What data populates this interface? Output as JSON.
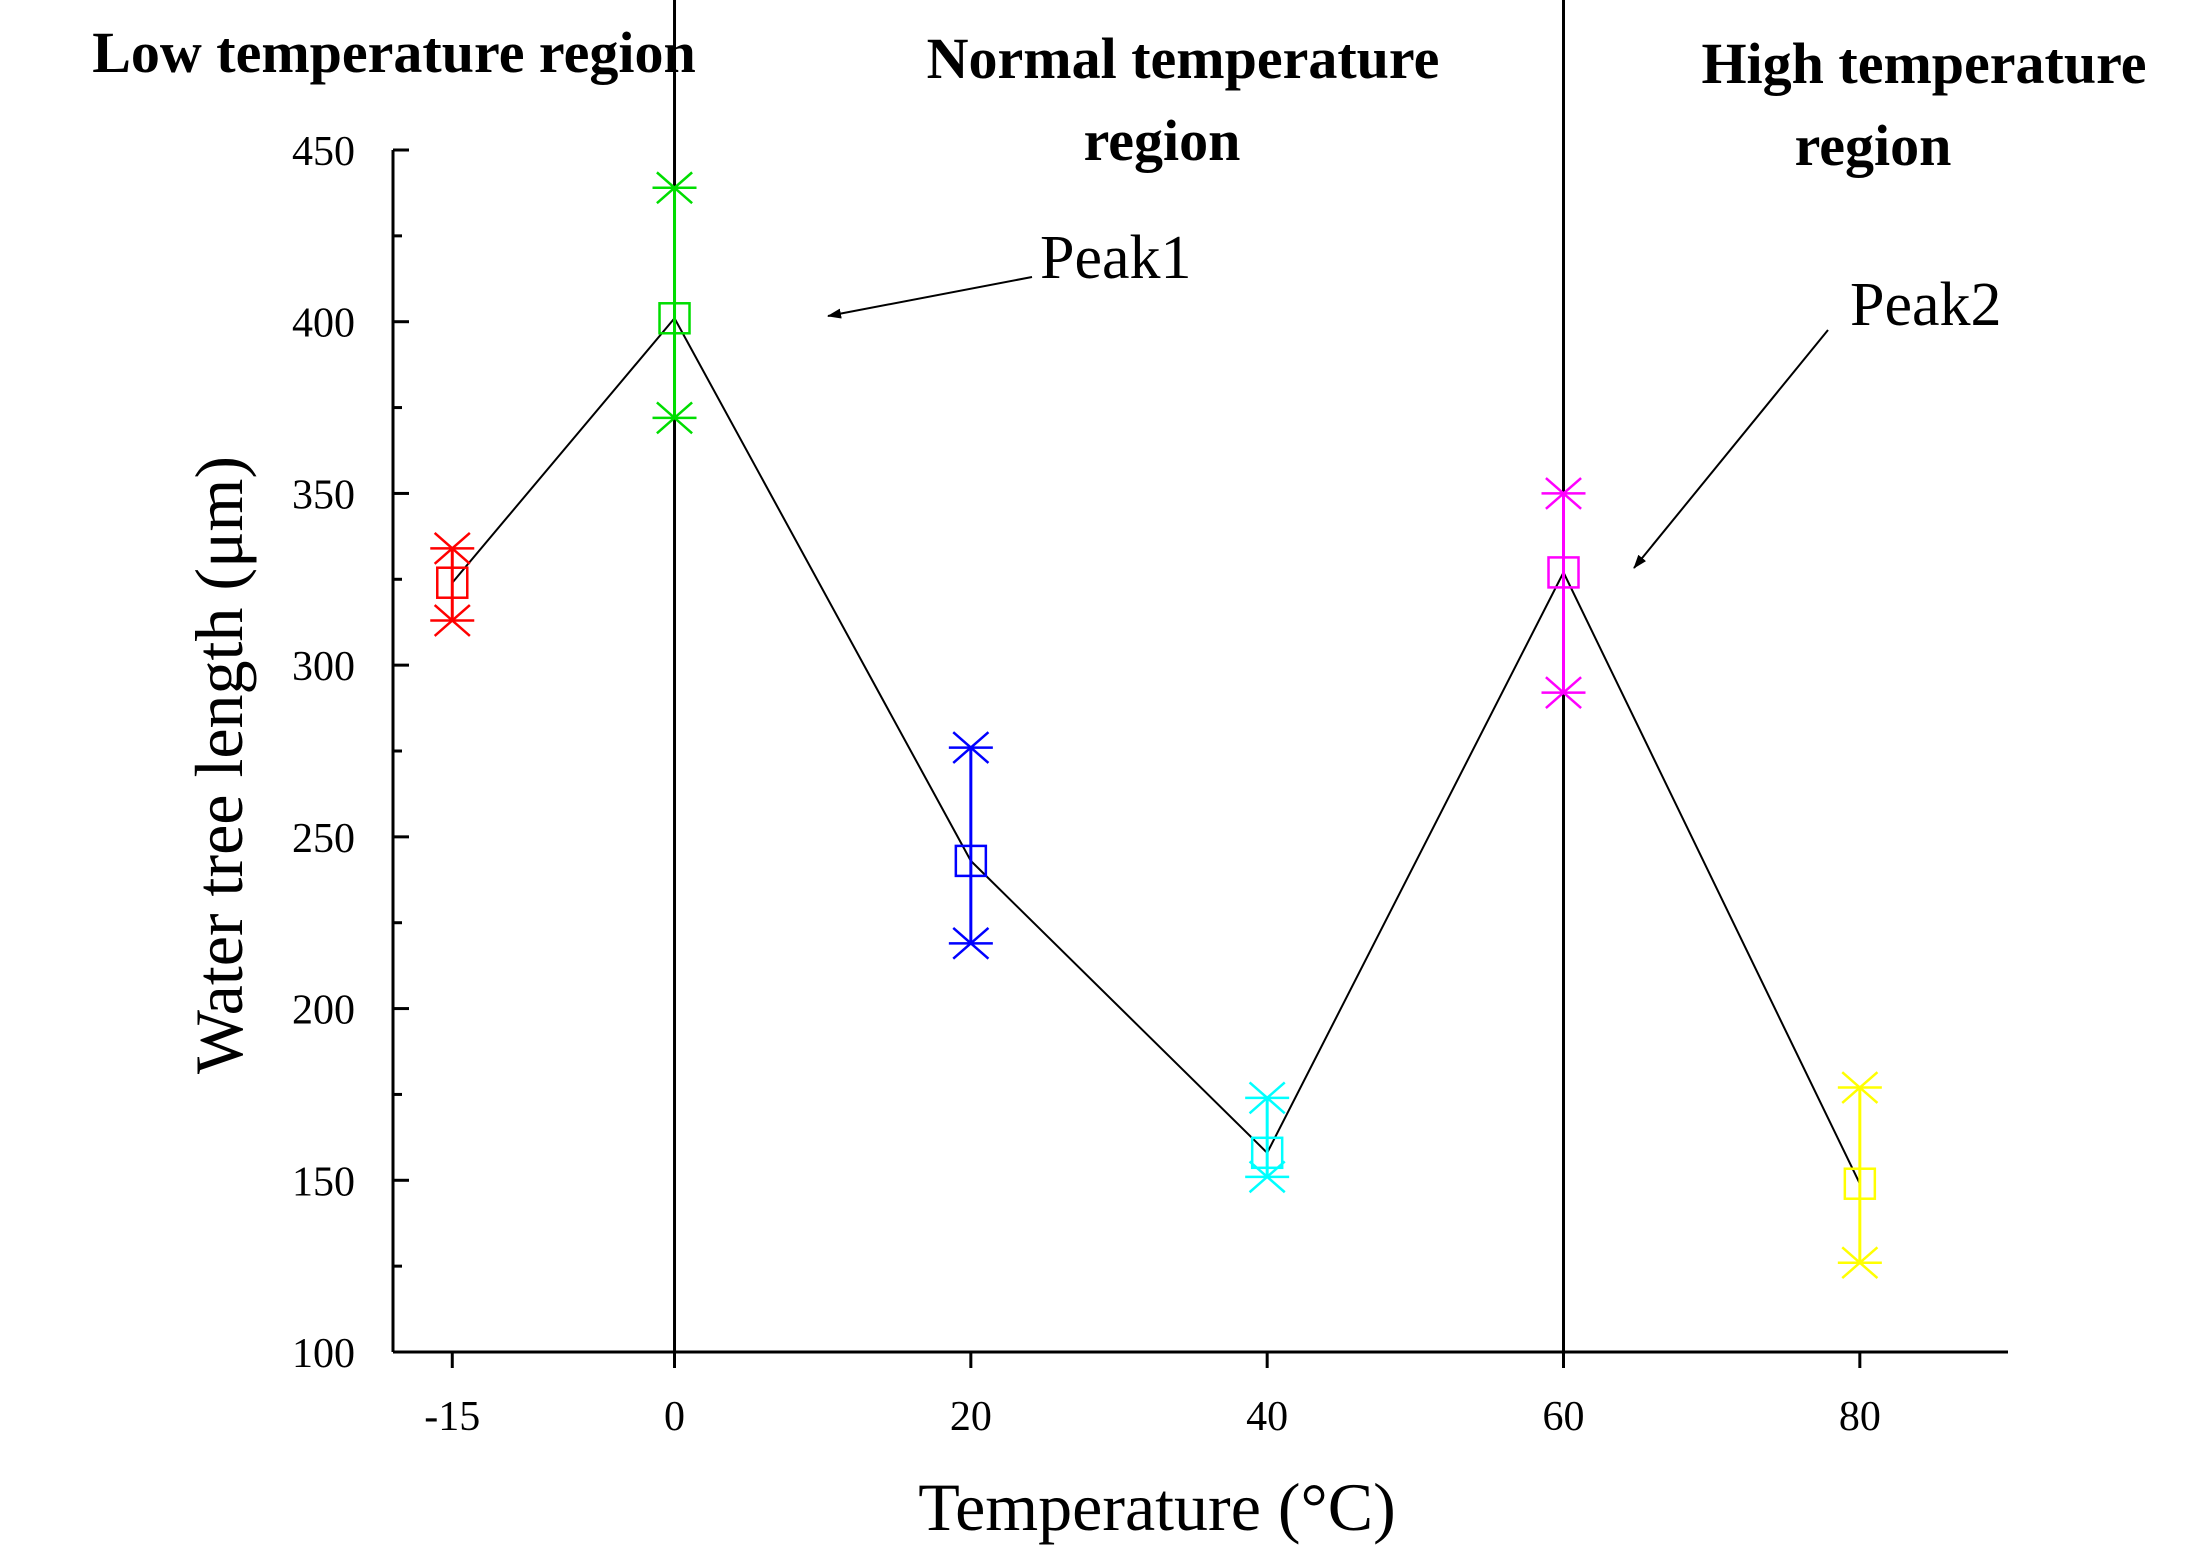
{
  "chart_data": {
    "type": "line",
    "x": [
      -15,
      0,
      20,
      40,
      60,
      80
    ],
    "xtick_labels": [
      "-15",
      "0",
      "20",
      "40",
      "60",
      "80"
    ],
    "y": [
      324,
      401,
      243,
      158,
      327,
      149
    ],
    "error_low": [
      313,
      372,
      219,
      151,
      292,
      126
    ],
    "error_high": [
      334,
      439,
      276,
      174,
      350,
      177
    ],
    "point_colors": [
      "#ff0000",
      "#00dd00",
      "#0000ff",
      "#00ffff",
      "#ff00ff",
      "#ffff00"
    ],
    "line_color": "#000000",
    "xlabel": "Temperature (°C)",
    "ylabel": "Water tree length (μm)",
    "ylim": [
      100,
      450
    ],
    "yticks": [
      100,
      150,
      200,
      250,
      300,
      350,
      400,
      450
    ],
    "xlim": [
      -19,
      90
    ],
    "region_dividers_x": [
      0,
      60
    ],
    "regions": [
      {
        "lines": [
          "Low temperature region"
        ]
      },
      {
        "lines": [
          "Normal temperature",
          "region"
        ]
      },
      {
        "lines": [
          "High temperature",
          "region"
        ]
      }
    ],
    "annotations": [
      {
        "text": "Peak1",
        "x": 0,
        "y": 401
      },
      {
        "text": "Peak2",
        "x": 60,
        "y": 327
      }
    ]
  }
}
